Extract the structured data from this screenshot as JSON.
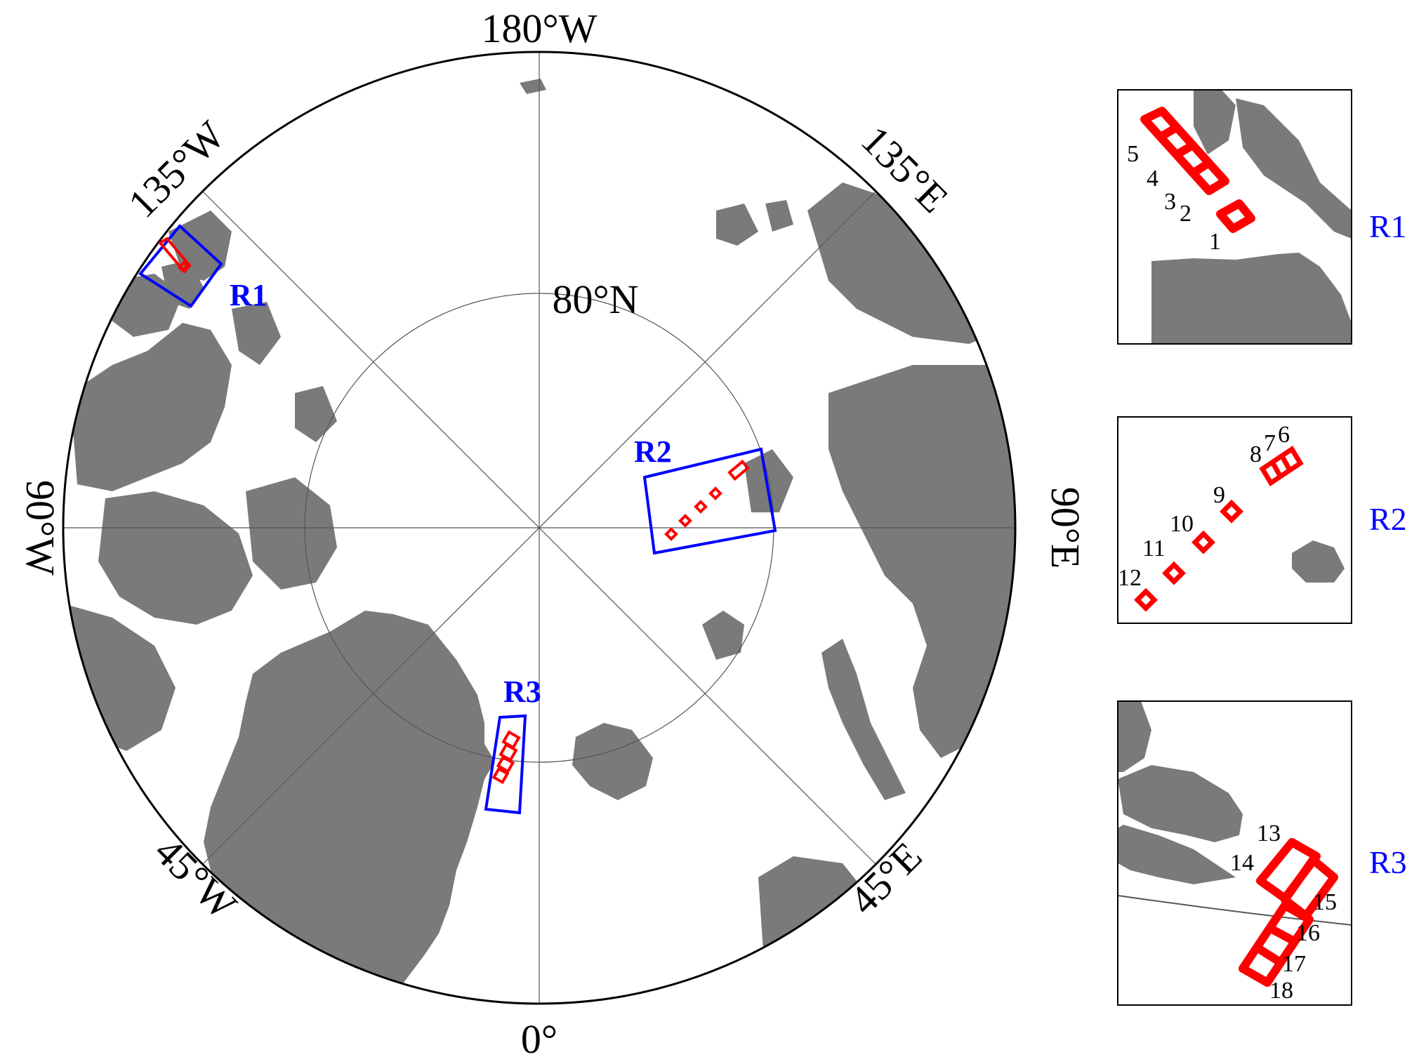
{
  "map": {
    "title": "",
    "projection": "north-polar-stereographic",
    "lat_circle_label": "80°N",
    "lon_labels": {
      "top": "180°W",
      "top_left": "135°W",
      "top_right": "135°E",
      "left": "90°W",
      "right": "90°E",
      "bottom_left": "45°W",
      "bottom_right": "45°E",
      "bottom": "0°"
    },
    "regions": [
      {
        "id": "R1",
        "label": "R1"
      },
      {
        "id": "R2",
        "label": "R2"
      },
      {
        "id": "R3",
        "label": "R3"
      }
    ],
    "colors": {
      "land": "#7a7a7a",
      "region_box": "#0000ff",
      "footprint": "#ff0000",
      "graticule": "#555555"
    }
  },
  "insets": [
    {
      "region": "R1",
      "label": "R1",
      "footprint_numbers": [
        "1",
        "2",
        "3",
        "4",
        "5"
      ]
    },
    {
      "region": "R2",
      "label": "R2",
      "footprint_numbers": [
        "6",
        "7",
        "8",
        "9",
        "10",
        "11",
        "12"
      ]
    },
    {
      "region": "R3",
      "label": "R3",
      "footprint_numbers": [
        "13",
        "14",
        "15",
        "16",
        "17",
        "18"
      ]
    }
  ]
}
